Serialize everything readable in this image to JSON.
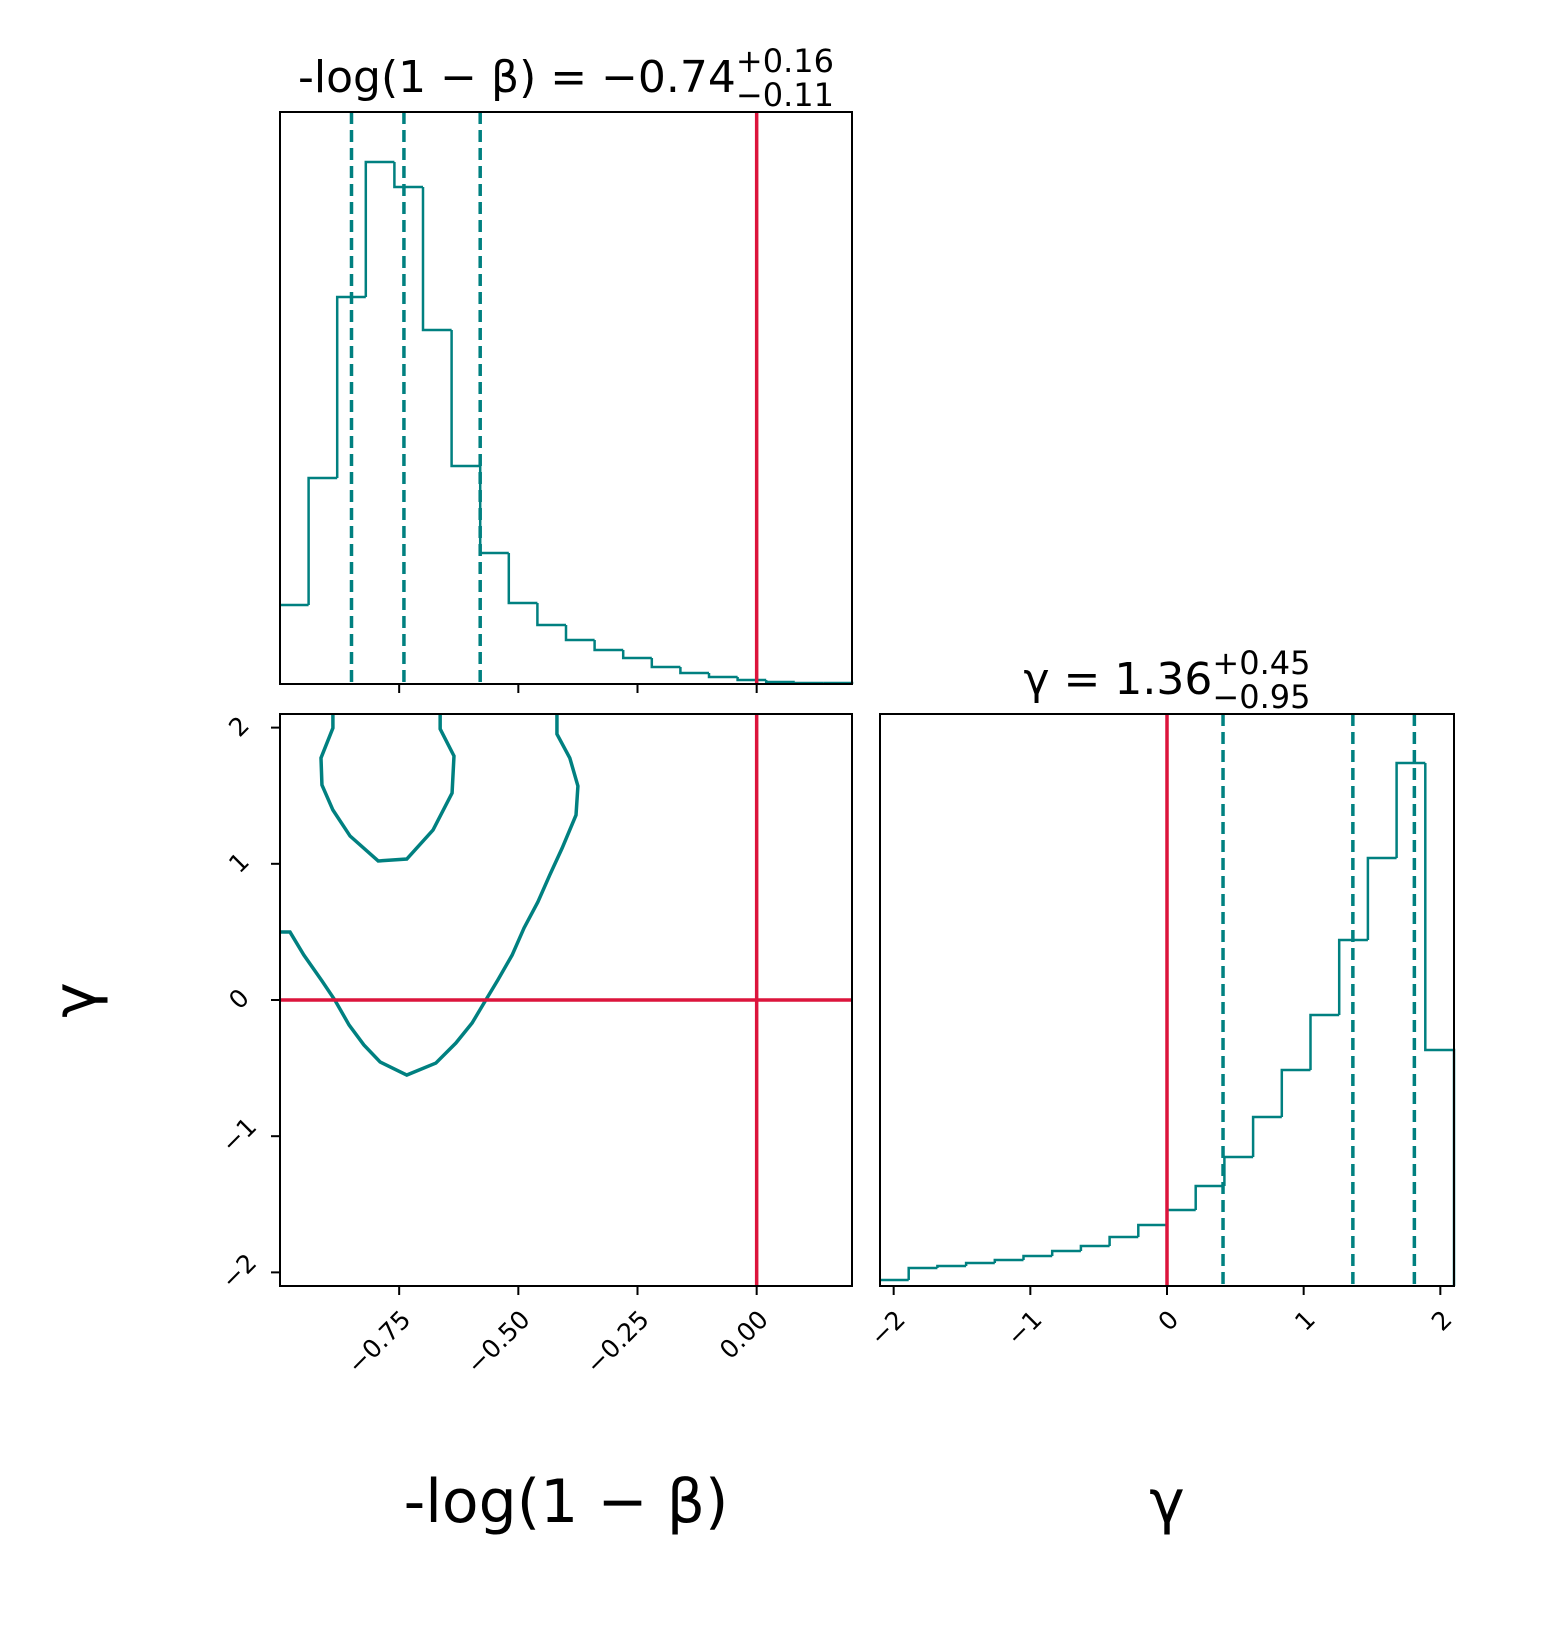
{
  "chart_data": [
    {
      "type": "histogram",
      "title": {
        "text": "-log(1 − β) = −0.74",
        "upper": "+0.16",
        "lower": "−0.11"
      },
      "bins": [
        -1.0,
        -0.94,
        -0.88,
        -0.82,
        -0.76,
        -0.7,
        -0.64,
        -0.58,
        -0.52,
        -0.46,
        -0.4,
        -0.34,
        -0.28,
        -0.22,
        -0.16,
        -0.1,
        -0.04,
        0.02,
        0.08,
        0.14,
        0.2
      ],
      "counts": [
        79,
        206,
        387,
        522,
        497,
        354,
        218,
        131,
        81,
        59,
        44,
        34,
        26,
        17,
        11,
        7,
        4,
        2,
        1,
        1
      ],
      "xlim": [
        -1.0,
        0.2
      ],
      "ylim": [
        0,
        572
      ],
      "xticks": [
        -0.75,
        -0.5,
        -0.25,
        0.0
      ],
      "quantiles": [
        -0.85,
        -0.74,
        -0.58
      ],
      "truth": 0,
      "color": "#008080",
      "truth_color": "#dc143c"
    },
    {
      "type": "contour",
      "xlabel": "-log(1 − β)",
      "ylabel": "γ",
      "xlim": [
        -1.0,
        0.2
      ],
      "ylim": [
        -2.1,
        2.1
      ],
      "xticks": [
        {
          "value": -0.75,
          "label": "−0.75"
        },
        {
          "value": -0.5,
          "label": "−0.50"
        },
        {
          "value": -0.25,
          "label": "−0.25"
        },
        {
          "value": 0.0,
          "label": "0.00"
        }
      ],
      "yticks": [
        {
          "value": -2,
          "label": "−2"
        },
        {
          "value": -1,
          "label": "−1"
        },
        0,
        1,
        2
      ],
      "series": [
        {
          "x": [
            -0.889,
            -0.889,
            -0.914,
            -0.912,
            -0.889,
            -0.853,
            -0.794,
            -0.734,
            -0.679,
            -0.639,
            -0.635,
            -0.664,
            -0.664
          ],
          "y": [
            2.1,
            1.997,
            1.777,
            1.579,
            1.395,
            1.204,
            1.021,
            1.035,
            1.248,
            1.52,
            1.792,
            1.99,
            2.1
          ]
        },
        {
          "x": [
            -1.0,
            -0.979,
            -0.95,
            -0.912,
            -0.885,
            -0.855,
            -0.824,
            -0.79,
            -0.734,
            -0.673,
            -0.631,
            -0.597,
            -0.572,
            -0.543,
            -0.513,
            -0.488,
            -0.459,
            -0.434,
            -0.408,
            -0.379,
            -0.375,
            -0.392,
            -0.419,
            -0.419
          ],
          "y": [
            0.499,
            0.499,
            0.33,
            0.14,
            0.0,
            -0.184,
            -0.33,
            -0.455,
            -0.551,
            -0.463,
            -0.316,
            -0.169,
            -0.022,
            0.147,
            0.33,
            0.529,
            0.72,
            0.918,
            1.116,
            1.358,
            1.571,
            1.777,
            1.953,
            2.1
          ]
        }
      ],
      "truth_x": 0,
      "truth_y": 0,
      "color": "#008080",
      "truth_color": "#dc143c"
    },
    {
      "type": "histogram",
      "title": {
        "text": "γ = 1.36",
        "upper": "+0.45",
        "lower": "−0.95"
      },
      "xlabel": "γ",
      "bins": [
        -2.1,
        -1.89,
        -1.68,
        -1.47,
        -1.26,
        -1.05,
        -0.84,
        -0.63,
        -0.42,
        -0.21,
        0.0,
        0.21,
        0.42,
        0.63,
        0.84,
        1.05,
        1.26,
        1.47,
        1.68,
        1.89,
        2.1
      ],
      "counts": [
        6,
        18,
        20,
        23,
        26,
        30,
        35,
        40,
        49,
        61,
        76,
        100,
        129,
        169,
        216,
        271,
        346,
        428,
        523,
        236
      ],
      "xlim": [
        -2.1,
        2.1
      ],
      "ylim": [
        0,
        572
      ],
      "xticks": [
        {
          "value": -2,
          "label": "−2"
        },
        {
          "value": -1,
          "label": "−1"
        },
        0,
        1,
        2
      ],
      "quantiles": [
        0.41,
        1.36,
        1.81
      ],
      "truth": 0,
      "color": "#008080",
      "truth_color": "#dc143c"
    }
  ]
}
